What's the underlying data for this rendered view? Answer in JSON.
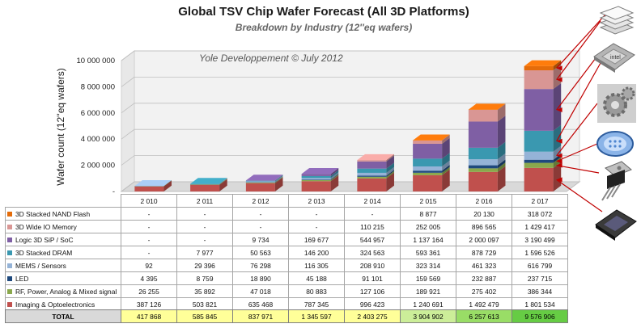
{
  "chart_data": {
    "type": "bar",
    "stacked": true,
    "three_d": true,
    "title": "Global TSV Chip Wafer Forecast (All  3D Platforms)",
    "subtitle": "Breakdown by Industry (12''eq wafers)",
    "ylabel": "Wafer count (12''eq wafers)",
    "watermark": "Yole Developpement © July 2012",
    "ylim": [
      0,
      10000000
    ],
    "yticks": [
      {
        "value": 0,
        "label": "-"
      },
      {
        "value": 2000000,
        "label": "2 000 000"
      },
      {
        "value": 4000000,
        "label": "4 000 000"
      },
      {
        "value": 6000000,
        "label": "6 000 000"
      },
      {
        "value": 8000000,
        "label": "8 000 000"
      },
      {
        "value": 10000000,
        "label": "10 000 000"
      }
    ],
    "categories": [
      "2 010",
      "2 011",
      "2 012",
      "2 013",
      "2 014",
      "2 015",
      "2 016",
      "2 017"
    ],
    "series": [
      {
        "name": "3D Stacked NAND Flash",
        "color": "#e46c0a",
        "values": [
          0,
          0,
          0,
          0,
          0,
          8877,
          20130,
          318072
        ],
        "labels": [
          "-",
          "-",
          "-",
          "-",
          "-",
          "8 877",
          "20 130",
          "318 072"
        ]
      },
      {
        "name": "3D Wide IO Memory",
        "color": "#d99694",
        "values": [
          0,
          0,
          0,
          0,
          110215,
          252005,
          896565,
          1429417
        ],
        "labels": [
          "-",
          "-",
          "-",
          "-",
          "110 215",
          "252 005",
          "896 565",
          "1 429 417"
        ]
      },
      {
        "name": "Logic 3D SiP / SoC",
        "color": "#7f5fa4",
        "values": [
          0,
          0,
          9734,
          169677,
          544957,
          1137164,
          2000097,
          3190499
        ],
        "labels": [
          "-",
          "-",
          "9 734",
          "169 677",
          "544 957",
          "1 137 164",
          "2 000 097",
          "3 190 499"
        ]
      },
      {
        "name": "3D Stacked DRAM",
        "color": "#3a98b0",
        "values": [
          0,
          7977,
          50563,
          146200,
          324563,
          593361,
          878729,
          1596526
        ],
        "labels": [
          "-",
          "7 977",
          "50 563",
          "146 200",
          "324 563",
          "593 361",
          "878 729",
          "1 596 526"
        ]
      },
      {
        "name": "MEMS / Sensors",
        "color": "#95b3d7",
        "values": [
          92,
          29396,
          76298,
          116305,
          208910,
          323314,
          461323,
          616799
        ],
        "labels": [
          "92",
          "29 396",
          "76 298",
          "116 305",
          "208 910",
          "323 314",
          "461 323",
          "616 799"
        ]
      },
      {
        "name": "LED",
        "color": "#1f497d",
        "values": [
          4395,
          8759,
          18890,
          45188,
          91101,
          159569,
          232887,
          237715
        ],
        "labels": [
          "4 395",
          "8 759",
          "18 890",
          "45 188",
          "91 101",
          "159 569",
          "232 887",
          "237 715"
        ]
      },
      {
        "name": "RF, Power, Analog & Mixed signal",
        "color": "#8aa84c",
        "values": [
          26255,
          35892,
          47018,
          80883,
          127106,
          189921,
          275402,
          386344
        ],
        "labels": [
          "26 255",
          "35 892",
          "47 018",
          "80 883",
          "127 106",
          "189 921",
          "275 402",
          "386 344"
        ]
      },
      {
        "name": "Imaging & Optoelectronics",
        "color": "#c0504d",
        "values": [
          387126,
          503821,
          635468,
          787345,
          996423,
          1240691,
          1492479,
          1801534
        ],
        "labels": [
          "387 126",
          "503 821",
          "635 468",
          "787 345",
          "996 423",
          "1 240 691",
          "1 492 479",
          "1 801 534"
        ]
      }
    ],
    "totals": {
      "label": "TOTAL",
      "values": [
        417868,
        585845,
        837971,
        1345597,
        2403275,
        3904902,
        6257613,
        9576906
      ],
      "labels": [
        "417 868",
        "585 845",
        "837 971",
        "1 345 597",
        "2 403 275",
        "3 904 902",
        "6 257 613",
        "9 576 906"
      ],
      "colors": [
        "#ffff99",
        "#ffff99",
        "#ffff99",
        "#ffff99",
        "#ffff99",
        "#ccee99",
        "#99dd66",
        "#66cc44"
      ]
    },
    "grid": true,
    "legend": "data-table"
  },
  "icons": [
    "chip-stack-icon",
    "cpu-icon",
    "gear-icon",
    "led-icon",
    "power-transistor-icon",
    "image-sensor-icon"
  ],
  "colors": {
    "arrow": "#c00000",
    "wall": "#f2f2f2",
    "grid": "#bfbfbf"
  }
}
